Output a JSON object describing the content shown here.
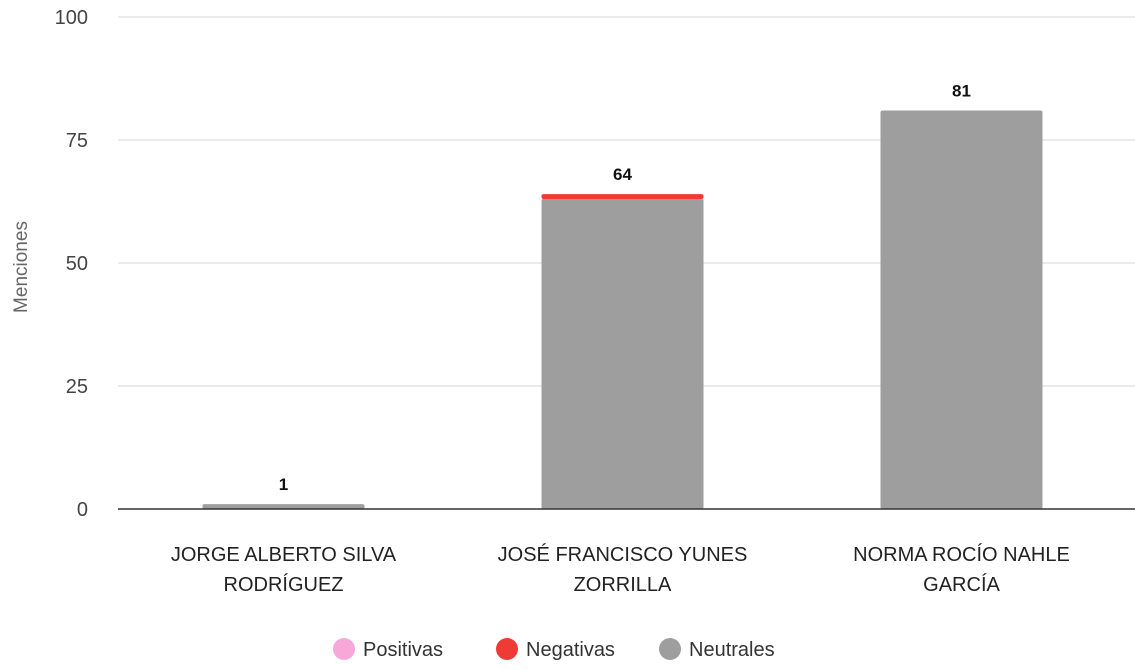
{
  "chart_data": {
    "type": "bar",
    "stacked": true,
    "title": "",
    "xlabel": "",
    "ylabel": "Menciones",
    "ylim": [
      0,
      100
    ],
    "yticks": [
      0,
      25,
      50,
      75,
      100
    ],
    "grid": true,
    "legend_position": "bottom",
    "categories": [
      [
        "JORGE ALBERTO SILVA",
        "RODRÍGUEZ"
      ],
      [
        "JOSÉ FRANCISCO YUNES",
        "ZORRILLA"
      ],
      [
        "NORMA ROCÍO NAHLE",
        "GARCÍA"
      ]
    ],
    "series": [
      {
        "name": "Neutrales",
        "color": "#9e9e9e",
        "values": [
          1,
          63,
          81
        ]
      },
      {
        "name": "Negativas",
        "color": "#ef3b36",
        "values": [
          0,
          1,
          0
        ]
      },
      {
        "name": "Positivas",
        "color": "#f7a8d8",
        "values": [
          0,
          0,
          0
        ]
      }
    ],
    "totals": [
      1,
      64,
      81
    ],
    "legend": [
      {
        "name": "Positivas",
        "color": "#f7a8d8"
      },
      {
        "name": "Negativas",
        "color": "#ef3b36"
      },
      {
        "name": "Neutrales",
        "color": "#9e9e9e"
      }
    ]
  }
}
